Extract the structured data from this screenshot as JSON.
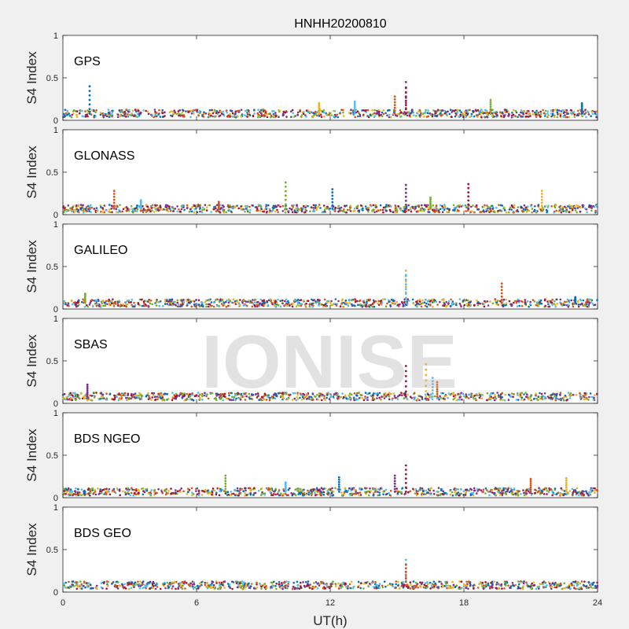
{
  "chart_data": {
    "type": "scatter",
    "title": "HNHH20200810",
    "xlabel": "UT(h)",
    "ylabel": "S4 Index",
    "xlim": [
      0,
      24
    ],
    "ylim": [
      0,
      1
    ],
    "xticks": [
      "0",
      "6",
      "12",
      "18",
      "24"
    ],
    "yticks": [
      "0",
      "0.5",
      "1"
    ],
    "grid": false,
    "watermark": "IONISE",
    "colors": [
      "#0072BD",
      "#D95319",
      "#EDB120",
      "#7E2F8E",
      "#77AC30",
      "#4DBEEE",
      "#A2142F"
    ],
    "panels": [
      {
        "system": "GPS",
        "baseline": 0.08,
        "spikes": [
          {
            "x": 1.2,
            "y": 0.4
          },
          {
            "x": 15.4,
            "y": 0.45
          },
          {
            "x": 15.4,
            "y": 0.38
          },
          {
            "x": 11.5,
            "y": 0.2
          },
          {
            "x": 13.1,
            "y": 0.22
          },
          {
            "x": 14.9,
            "y": 0.28
          },
          {
            "x": 19.2,
            "y": 0.24
          },
          {
            "x": 23.3,
            "y": 0.2
          }
        ]
      },
      {
        "system": "GLONASS",
        "baseline": 0.07,
        "spikes": [
          {
            "x": 2.3,
            "y": 0.28
          },
          {
            "x": 10.0,
            "y": 0.38
          },
          {
            "x": 12.1,
            "y": 0.3
          },
          {
            "x": 15.4,
            "y": 0.35
          },
          {
            "x": 18.2,
            "y": 0.36
          },
          {
            "x": 21.5,
            "y": 0.28
          },
          {
            "x": 3.5,
            "y": 0.17
          },
          {
            "x": 7.0,
            "y": 0.15
          },
          {
            "x": 16.5,
            "y": 0.2
          }
        ]
      },
      {
        "system": "GALILEO",
        "baseline": 0.07,
        "spikes": [
          {
            "x": 15.4,
            "y": 0.45
          },
          {
            "x": 15.4,
            "y": 0.4
          },
          {
            "x": 19.7,
            "y": 0.3
          },
          {
            "x": 1.0,
            "y": 0.18
          },
          {
            "x": 23.0,
            "y": 0.14
          }
        ]
      },
      {
        "system": "SBAS",
        "baseline": 0.08,
        "spikes": [
          {
            "x": 1.1,
            "y": 0.22
          },
          {
            "x": 15.4,
            "y": 0.44
          },
          {
            "x": 16.3,
            "y": 0.46
          },
          {
            "x": 16.6,
            "y": 0.3
          },
          {
            "x": 16.8,
            "y": 0.25
          }
        ]
      },
      {
        "system": "BDS NGEO",
        "baseline": 0.07,
        "spikes": [
          {
            "x": 7.3,
            "y": 0.26
          },
          {
            "x": 12.4,
            "y": 0.24
          },
          {
            "x": 14.9,
            "y": 0.26
          },
          {
            "x": 15.4,
            "y": 0.38
          },
          {
            "x": 22.6,
            "y": 0.23
          },
          {
            "x": 10.0,
            "y": 0.18
          },
          {
            "x": 21.0,
            "y": 0.22
          }
        ]
      },
      {
        "system": "BDS GEO",
        "baseline": 0.08,
        "spikes": [
          {
            "x": 15.4,
            "y": 0.38
          },
          {
            "x": 15.4,
            "y": 0.32
          }
        ]
      }
    ]
  }
}
